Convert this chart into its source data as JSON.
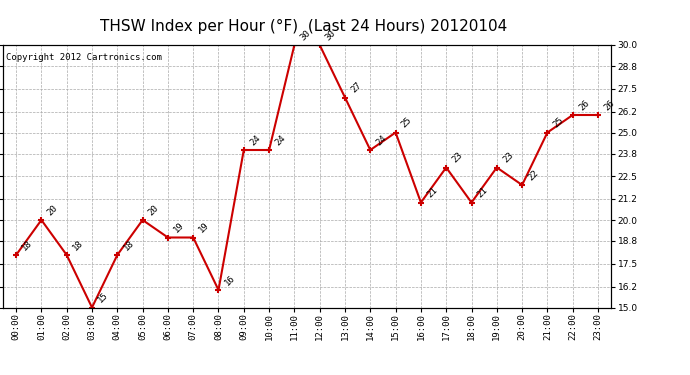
{
  "title": "THSW Index per Hour (°F)  (Last 24 Hours) 20120104",
  "copyright": "Copyright 2012 Cartronics.com",
  "hours": [
    "00:00",
    "01:00",
    "02:00",
    "03:00",
    "04:00",
    "05:00",
    "06:00",
    "07:00",
    "08:00",
    "09:00",
    "10:00",
    "11:00",
    "12:00",
    "13:00",
    "14:00",
    "15:00",
    "16:00",
    "17:00",
    "18:00",
    "19:00",
    "20:00",
    "21:00",
    "22:00",
    "23:00"
  ],
  "values": [
    18,
    20,
    18,
    15,
    18,
    20,
    19,
    19,
    16,
    24,
    24,
    30,
    30,
    27,
    24,
    25,
    21,
    23,
    21,
    23,
    22,
    25,
    26,
    26
  ],
  "ylim": [
    15.0,
    30.0
  ],
  "yticks": [
    15.0,
    16.2,
    17.5,
    18.8,
    20.0,
    21.2,
    22.5,
    23.8,
    25.0,
    26.2,
    27.5,
    28.8,
    30.0
  ],
  "line_color": "#cc0000",
  "marker_color": "#cc0000",
  "bg_color": "#ffffff",
  "grid_color": "#aaaaaa",
  "title_fontsize": 11,
  "copyright_fontsize": 6.5,
  "annotation_fontsize": 6.5
}
